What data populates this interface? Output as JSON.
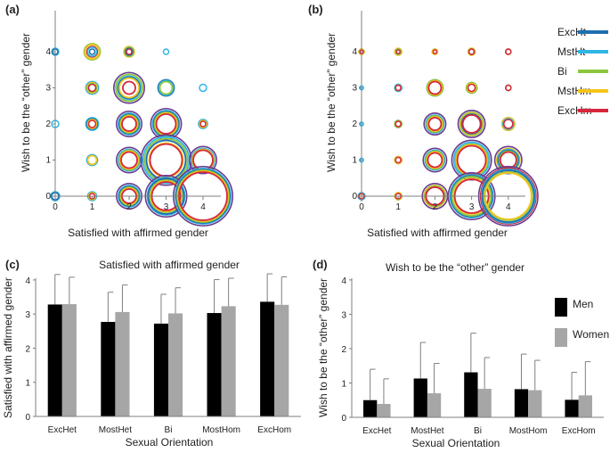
{
  "colors": {
    "ExcHt": "#1f6fad",
    "MstHt": "#2fb6e6",
    "Bi": "#8cc63f",
    "MstHm": "#f5c518",
    "ExcHm": "#d7263d",
    "outer": "#6a3d8f",
    "men": "#000000",
    "women": "#a6a6a6",
    "axis": "#7f7f7f",
    "err": "#7f7f7f"
  },
  "chart_data": [
    {
      "type": "scatter",
      "panel_label": "(a)",
      "title": "",
      "xlabel": "Satisfied with affirmed gender",
      "ylabel": "Wish to be the “other” gender",
      "x_ticks": [
        "0",
        "1",
        "2",
        "3",
        "4"
      ],
      "y_ticks": [
        "0",
        "1",
        "2",
        "3",
        "4"
      ],
      "xlim": [
        0,
        4
      ],
      "ylim": [
        0,
        4
      ],
      "series": [
        "ExcHt",
        "MstHt",
        "Bi",
        "MstHm",
        "ExcHm"
      ],
      "points": [
        {
          "x": 0,
          "y": 4,
          "sizes": [
            3,
            4,
            0,
            0,
            0
          ]
        },
        {
          "x": 1,
          "y": 4,
          "sizes": [
            3,
            5,
            9,
            8,
            6
          ]
        },
        {
          "x": 2,
          "y": 4,
          "sizes": [
            4,
            5,
            5,
            6,
            3
          ]
        },
        {
          "x": 3,
          "y": 4,
          "sizes": [
            0,
            3,
            0,
            0,
            0
          ]
        },
        {
          "x": 1,
          "y": 3,
          "sizes": [
            6,
            7,
            5,
            6,
            4
          ]
        },
        {
          "x": 2,
          "y": 3,
          "sizes": [
            12,
            13,
            15,
            11,
            7
          ]
        },
        {
          "x": 3,
          "y": 3,
          "sizes": [
            9,
            8,
            7,
            0,
            0
          ]
        },
        {
          "x": 4,
          "y": 3,
          "sizes": [
            0,
            4,
            0,
            0,
            0
          ]
        },
        {
          "x": 0,
          "y": 2,
          "sizes": [
            0,
            4,
            0,
            0,
            0
          ]
        },
        {
          "x": 1,
          "y": 2,
          "sizes": [
            6,
            7,
            5,
            5,
            4
          ]
        },
        {
          "x": 2,
          "y": 2,
          "sizes": [
            11,
            12,
            10,
            9,
            8
          ]
        },
        {
          "x": 3,
          "y": 2,
          "sizes": [
            14,
            15,
            13,
            12,
            11
          ]
        },
        {
          "x": 4,
          "y": 2,
          "sizes": [
            5,
            5,
            4,
            4,
            3
          ]
        },
        {
          "x": 1,
          "y": 1,
          "sizes": [
            6,
            6,
            5,
            5,
            0
          ]
        },
        {
          "x": 2,
          "y": 1,
          "sizes": [
            11,
            12,
            11,
            10,
            9
          ]
        },
        {
          "x": 3,
          "y": 1,
          "sizes": [
            22,
            26,
            24,
            19,
            18
          ]
        },
        {
          "x": 4,
          "y": 1,
          "sizes": [
            12,
            13,
            11,
            12,
            11
          ]
        },
        {
          "x": 0,
          "y": 0,
          "sizes": [
            4,
            5,
            0,
            0,
            0
          ]
        },
        {
          "x": 1,
          "y": 0,
          "sizes": [
            4,
            5,
            4,
            4,
            3
          ]
        },
        {
          "x": 2,
          "y": 0,
          "sizes": [
            11,
            12,
            10,
            9,
            8
          ]
        },
        {
          "x": 3,
          "y": 0,
          "sizes": [
            20,
            21,
            18,
            17,
            16
          ]
        },
        {
          "x": 4,
          "y": 0,
          "sizes": [
            30,
            31,
            29,
            28,
            27
          ]
        }
      ]
    },
    {
      "type": "scatter",
      "panel_label": "(b)",
      "title": "",
      "xlabel": "Satisfied with affirmed gender",
      "ylabel": "Wish to be the “other” gender",
      "x_ticks": [
        "0",
        "1",
        "2",
        "3",
        "4"
      ],
      "y_ticks": [
        "0",
        "1",
        "2",
        "3",
        "4"
      ],
      "xlim": [
        0,
        4
      ],
      "ylim": [
        0,
        4
      ],
      "series": [
        "ExcHt",
        "MstHt",
        "Bi",
        "MstHm",
        "ExcHm"
      ],
      "legend": [
        "ExcHt",
        "MstHt",
        "Bi",
        "MstHm",
        "ExcHm"
      ],
      "legend_position": "top-right",
      "points": [
        {
          "x": 0,
          "y": 4,
          "sizes": [
            3,
            3,
            3,
            3,
            2
          ]
        },
        {
          "x": 1,
          "y": 4,
          "sizes": [
            3,
            3,
            3,
            4,
            2
          ]
        },
        {
          "x": 2,
          "y": 4,
          "sizes": [
            3,
            3,
            3,
            3,
            2
          ]
        },
        {
          "x": 3,
          "y": 4,
          "sizes": [
            3,
            3,
            4,
            4,
            3
          ]
        },
        {
          "x": 4,
          "y": 4,
          "sizes": [
            3,
            3,
            3,
            3,
            3
          ]
        },
        {
          "x": 0,
          "y": 3,
          "sizes": [
            2,
            2,
            0,
            0,
            0
          ]
        },
        {
          "x": 1,
          "y": 3,
          "sizes": [
            4,
            4,
            3,
            3,
            3
          ]
        },
        {
          "x": 2,
          "y": 3,
          "sizes": [
            8,
            9,
            9,
            8,
            7
          ]
        },
        {
          "x": 3,
          "y": 3,
          "sizes": [
            5,
            6,
            6,
            5,
            4
          ]
        },
        {
          "x": 4,
          "y": 3,
          "sizes": [
            3,
            3,
            3,
            3,
            3
          ]
        },
        {
          "x": 0,
          "y": 2,
          "sizes": [
            2,
            2,
            0,
            0,
            0
          ]
        },
        {
          "x": 1,
          "y": 2,
          "sizes": [
            4,
            4,
            4,
            3,
            3
          ]
        },
        {
          "x": 2,
          "y": 2,
          "sizes": [
            9,
            10,
            9,
            8,
            7
          ]
        },
        {
          "x": 3,
          "y": 2,
          "sizes": [
            11,
            12,
            13,
            12,
            10
          ]
        },
        {
          "x": 4,
          "y": 2,
          "sizes": [
            7,
            6,
            7,
            7,
            5
          ]
        },
        {
          "x": 0,
          "y": 1,
          "sizes": [
            2,
            2,
            0,
            0,
            0
          ]
        },
        {
          "x": 1,
          "y": 1,
          "sizes": [
            4,
            4,
            4,
            4,
            3
          ]
        },
        {
          "x": 2,
          "y": 1,
          "sizes": [
            10,
            11,
            10,
            9,
            8
          ]
        },
        {
          "x": 3,
          "y": 1,
          "sizes": [
            18,
            20,
            18,
            17,
            16
          ]
        },
        {
          "x": 4,
          "y": 1,
          "sizes": [
            11,
            12,
            10,
            13,
            9
          ]
        },
        {
          "x": 0,
          "y": 0,
          "sizes": [
            3,
            4,
            3,
            3,
            3
          ]
        },
        {
          "x": 1,
          "y": 0,
          "sizes": [
            4,
            4,
            4,
            4,
            3
          ]
        },
        {
          "x": 2,
          "y": 0,
          "sizes": [
            11,
            12,
            11,
            12,
            10
          ]
        },
        {
          "x": 3,
          "y": 0,
          "sizes": [
            23,
            24,
            22,
            20,
            19
          ]
        },
        {
          "x": 4,
          "y": 0,
          "sizes": [
            29,
            30,
            27,
            26,
            31
          ]
        }
      ]
    },
    {
      "type": "bar",
      "panel_label": "(c)",
      "title": "Satisfied with affirmed gender",
      "xlabel": "Sexual Orientation",
      "ylabel": "Satisfied with affirmed gender",
      "categories": [
        "ExcHet",
        "MostHet",
        "Bi",
        "MostHom",
        "ExcHom"
      ],
      "ylim": [
        0,
        4
      ],
      "y_ticks": [
        "0",
        "1",
        "2",
        "3",
        "4"
      ],
      "series": [
        {
          "values": [
            3.28,
            2.77,
            2.72,
            3.03,
            3.36
          ],
          "err": [
            0.88,
            0.87,
            0.86,
            0.98,
            0.82
          ]
        },
        {
          "values": [
            3.29,
            3.06,
            3.02,
            3.23,
            3.27
          ],
          "err": [
            0.79,
            0.79,
            0.75,
            0.82,
            0.82
          ]
        }
      ]
    },
    {
      "type": "bar",
      "panel_label": "(d)",
      "title": "Wish to be the “other” gender",
      "xlabel": "Sexual Orientation",
      "ylabel": "Wish to be the “other” gender",
      "categories": [
        "ExcHet",
        "MostHet",
        "Bi",
        "MostHom",
        "ExcHom"
      ],
      "ylim": [
        0,
        4
      ],
      "y_ticks": [
        "0",
        "1",
        "2",
        "3",
        "4"
      ],
      "legend": [
        "Men",
        "Women"
      ],
      "legend_position": "top-right",
      "series": [
        {
          "name": "Men",
          "values": [
            0.5,
            1.13,
            1.31,
            0.82,
            0.51
          ],
          "err": [
            0.9,
            1.05,
            1.14,
            1.02,
            0.8
          ]
        },
        {
          "name": "Women",
          "values": [
            0.39,
            0.7,
            0.83,
            0.79,
            0.64
          ],
          "err": [
            0.73,
            0.87,
            0.91,
            0.87,
            0.98
          ]
        }
      ]
    }
  ]
}
